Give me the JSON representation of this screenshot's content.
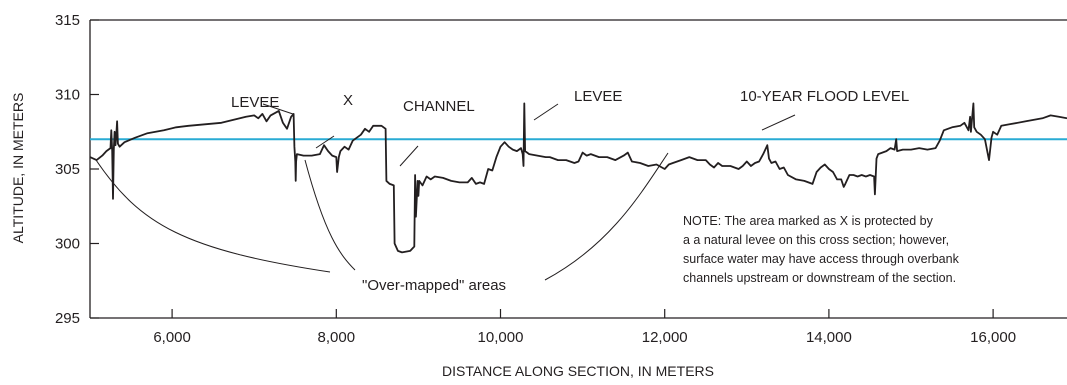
{
  "chart_data": {
    "type": "line",
    "xlabel": "DISTANCE ALONG SECTION, IN METERS",
    "ylabel": "ALTITUDE, IN METERS",
    "xlim": [
      5000,
      16900
    ],
    "ylim": [
      295,
      315
    ],
    "x_ticks": [
      6000,
      8000,
      10000,
      12000,
      14000,
      16000
    ],
    "x_tick_labels": [
      "6,000",
      "8,000",
      "10,000",
      "12,000",
      "14,000",
      "16,000"
    ],
    "y_ticks": [
      295,
      300,
      305,
      310,
      315
    ],
    "y_tick_labels": [
      "295",
      "300",
      "305",
      "310",
      "315"
    ],
    "grid": false,
    "flood_level": 307.0,
    "colors": {
      "profile": "#231f20",
      "flood_line": "#29abd4",
      "axis": "#231f20"
    },
    "series": [
      {
        "points": [
          [
            5000,
            305.8
          ],
          [
            5080,
            305.6
          ],
          [
            5150,
            305.9
          ],
          [
            5200,
            306.2
          ],
          [
            5250,
            306.4
          ],
          [
            5260,
            307.6
          ],
          [
            5270,
            306.2
          ],
          [
            5280,
            303.0
          ],
          [
            5290,
            306.3
          ],
          [
            5300,
            307.5
          ],
          [
            5310,
            306.6
          ],
          [
            5320,
            307.3
          ],
          [
            5330,
            308.2
          ],
          [
            5340,
            306.7
          ],
          [
            5360,
            306.5
          ],
          [
            5420,
            306.8
          ],
          [
            5550,
            307.1
          ],
          [
            5700,
            307.4
          ],
          [
            5900,
            307.6
          ],
          [
            6050,
            307.8
          ],
          [
            6200,
            307.9
          ],
          [
            6400,
            308.0
          ],
          [
            6600,
            308.1
          ],
          [
            6750,
            308.3
          ],
          [
            6900,
            308.5
          ],
          [
            7000,
            308.6
          ],
          [
            7050,
            308.4
          ],
          [
            7100,
            308.7
          ],
          [
            7150,
            308.2
          ],
          [
            7200,
            308.6
          ],
          [
            7300,
            308.9
          ],
          [
            7350,
            308.1
          ],
          [
            7400,
            307.7
          ],
          [
            7450,
            308.5
          ],
          [
            7480,
            308.7
          ],
          [
            7490,
            306.5
          ],
          [
            7500,
            305.5
          ],
          [
            7505,
            304.2
          ],
          [
            7510,
            305.5
          ],
          [
            7520,
            306.0
          ],
          [
            7600,
            305.9
          ],
          [
            7700,
            305.9
          ],
          [
            7800,
            306.0
          ],
          [
            7850,
            306.6
          ],
          [
            7900,
            306.2
          ],
          [
            7950,
            305.9
          ],
          [
            8000,
            305.8
          ],
          [
            8010,
            304.8
          ],
          [
            8030,
            305.8
          ],
          [
            8050,
            306.2
          ],
          [
            8100,
            306.5
          ],
          [
            8150,
            306.3
          ],
          [
            8200,
            306.9
          ],
          [
            8300,
            307.3
          ],
          [
            8350,
            307.7
          ],
          [
            8400,
            307.5
          ],
          [
            8450,
            307.9
          ],
          [
            8550,
            307.9
          ],
          [
            8600,
            307.7
          ],
          [
            8610,
            304.2
          ],
          [
            8650,
            304.0
          ],
          [
            8700,
            303.9
          ],
          [
            8710,
            300.0
          ],
          [
            8750,
            299.5
          ],
          [
            8800,
            299.4
          ],
          [
            8900,
            299.5
          ],
          [
            8950,
            299.8
          ],
          [
            8960,
            304.6
          ],
          [
            8970,
            301.8
          ],
          [
            8990,
            304.2
          ],
          [
            9000,
            303.2
          ],
          [
            9010,
            304.2
          ],
          [
            9050,
            303.9
          ],
          [
            9100,
            304.5
          ],
          [
            9150,
            304.3
          ],
          [
            9200,
            304.5
          ],
          [
            9300,
            304.4
          ],
          [
            9400,
            304.2
          ],
          [
            9500,
            304.1
          ],
          [
            9600,
            304.1
          ],
          [
            9650,
            304.4
          ],
          [
            9700,
            304.0
          ],
          [
            9750,
            304.1
          ],
          [
            9800,
            304.0
          ],
          [
            9850,
            305.0
          ],
          [
            9900,
            304.9
          ],
          [
            9950,
            305.8
          ],
          [
            10000,
            306.5
          ],
          [
            10050,
            306.8
          ],
          [
            10100,
            306.5
          ],
          [
            10150,
            306.3
          ],
          [
            10200,
            306.2
          ],
          [
            10250,
            306.4
          ],
          [
            10270,
            306.0
          ],
          [
            10280,
            305.2
          ],
          [
            10290,
            309.4
          ],
          [
            10300,
            306.2
          ],
          [
            10350,
            306.0
          ],
          [
            10450,
            305.9
          ],
          [
            10550,
            305.8
          ],
          [
            10600,
            305.8
          ],
          [
            10700,
            305.6
          ],
          [
            10800,
            305.6
          ],
          [
            10900,
            305.4
          ],
          [
            10950,
            305.5
          ],
          [
            11000,
            306.1
          ],
          [
            11050,
            305.9
          ],
          [
            11100,
            306.0
          ],
          [
            11200,
            305.8
          ],
          [
            11300,
            305.8
          ],
          [
            11400,
            305.6
          ],
          [
            11500,
            305.9
          ],
          [
            11550,
            306.1
          ],
          [
            11600,
            305.5
          ],
          [
            11700,
            305.4
          ],
          [
            11800,
            305.2
          ],
          [
            11900,
            305.3
          ],
          [
            12000,
            305.0
          ],
          [
            12050,
            305.3
          ],
          [
            12100,
            305.4
          ],
          [
            12200,
            305.6
          ],
          [
            12300,
            305.8
          ],
          [
            12400,
            305.6
          ],
          [
            12500,
            305.6
          ],
          [
            12550,
            305.3
          ],
          [
            12600,
            305.1
          ],
          [
            12650,
            305.4
          ],
          [
            12700,
            305.2
          ],
          [
            12800,
            305.2
          ],
          [
            12900,
            305.0
          ],
          [
            12950,
            305.2
          ],
          [
            13000,
            305.5
          ],
          [
            13050,
            305.2
          ],
          [
            13100,
            305.4
          ],
          [
            13150,
            305.5
          ],
          [
            13200,
            306.0
          ],
          [
            13250,
            306.6
          ],
          [
            13270,
            305.7
          ],
          [
            13300,
            305.4
          ],
          [
            13350,
            305.5
          ],
          [
            13400,
            305.0
          ],
          [
            13450,
            305.1
          ],
          [
            13500,
            304.6
          ],
          [
            13600,
            304.3
          ],
          [
            13700,
            304.2
          ],
          [
            13800,
            304.0
          ],
          [
            13850,
            304.8
          ],
          [
            13900,
            305.1
          ],
          [
            13950,
            305.3
          ],
          [
            14000,
            305.0
          ],
          [
            14050,
            304.8
          ],
          [
            14100,
            304.3
          ],
          [
            14150,
            304.3
          ],
          [
            14180,
            303.8
          ],
          [
            14200,
            304.0
          ],
          [
            14250,
            304.6
          ],
          [
            14300,
            304.6
          ],
          [
            14350,
            304.5
          ],
          [
            14400,
            304.6
          ],
          [
            14450,
            304.5
          ],
          [
            14500,
            304.6
          ],
          [
            14550,
            304.5
          ],
          [
            14560,
            303.3
          ],
          [
            14580,
            305.7
          ],
          [
            14600,
            306.0
          ],
          [
            14700,
            306.2
          ],
          [
            14750,
            306.4
          ],
          [
            14800,
            306.3
          ],
          [
            14820,
            307.0
          ],
          [
            14830,
            306.2
          ],
          [
            14900,
            306.3
          ],
          [
            15000,
            306.3
          ],
          [
            15100,
            306.4
          ],
          [
            15200,
            306.3
          ],
          [
            15300,
            306.4
          ],
          [
            15350,
            306.9
          ],
          [
            15400,
            307.6
          ],
          [
            15500,
            307.8
          ],
          [
            15600,
            307.9
          ],
          [
            15650,
            308.1
          ],
          [
            15700,
            307.6
          ],
          [
            15720,
            308.5
          ],
          [
            15730,
            307.5
          ],
          [
            15760,
            309.4
          ],
          [
            15770,
            307.8
          ],
          [
            15800,
            307.5
          ],
          [
            15850,
            307.3
          ],
          [
            15900,
            307.0
          ],
          [
            15950,
            305.6
          ],
          [
            15980,
            307.1
          ],
          [
            16000,
            307.5
          ],
          [
            16050,
            307.3
          ],
          [
            16100,
            307.9
          ],
          [
            16200,
            308.0
          ],
          [
            16400,
            308.2
          ],
          [
            16600,
            308.4
          ],
          [
            16700,
            308.6
          ],
          [
            16800,
            308.5
          ],
          [
            16900,
            308.4
          ]
        ]
      }
    ],
    "annotations": [
      {
        "text": "LEVEE",
        "x": 7000,
        "y": 310.7
      },
      {
        "text": "X",
        "x": 7900,
        "y": 309.4
      },
      {
        "text": "CHANNEL",
        "x": 8400,
        "y": 308.9
      },
      {
        "text": "LEVEE",
        "x": 10800,
        "y": 309.7
      },
      {
        "text": "10-YEAR FLOOD LEVEL",
        "x": 13750,
        "y": 309.7
      },
      {
        "text": "\"Over-mapped\" areas",
        "x": 9050,
        "y": 297.5
      }
    ],
    "note_lines": [
      "NOTE:  The area marked as X is protected by",
      "a a natural levee on this cross section; however,",
      "surface water may have access through overbank",
      "channels upstream or downstream of the section."
    ]
  }
}
